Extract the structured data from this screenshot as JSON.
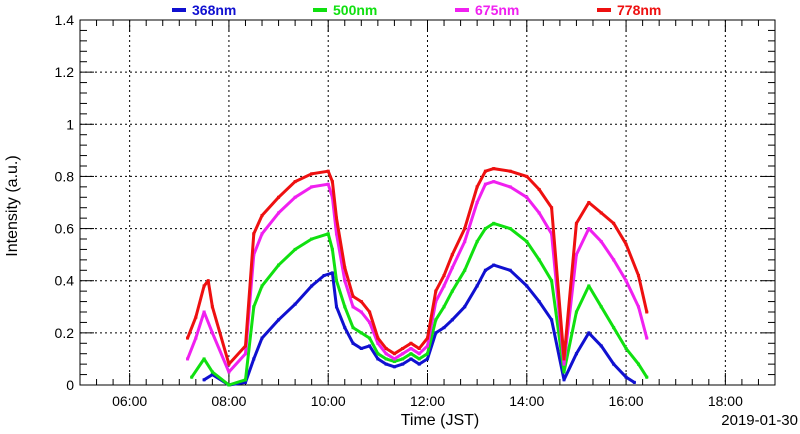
{
  "chart_data": {
    "type": "scatter",
    "title": "",
    "xlabel": "Time (JST)",
    "ylabel": "Intensity (a.u.)",
    "date_label": "2019-01-30",
    "xlim": [
      "05:00",
      "19:00"
    ],
    "ylim": [
      0,
      1.4
    ],
    "x_ticks": [
      "06:00",
      "08:00",
      "10:00",
      "12:00",
      "14:00",
      "16:00",
      "18:00"
    ],
    "y_ticks": [
      "0",
      "0.2",
      "0.4",
      "0.6",
      "0.8",
      "1",
      "1.2",
      "1.4"
    ],
    "grid": true,
    "legend_position": "top",
    "series": [
      {
        "name": "368nm",
        "color": "#1010d0",
        "points": [
          [
            "07:30",
            0.02
          ],
          [
            "07:40",
            0.04
          ],
          [
            "08:00",
            0.0
          ],
          [
            "08:20",
            0.01
          ],
          [
            "08:30",
            0.1
          ],
          [
            "08:40",
            0.18
          ],
          [
            "09:00",
            0.25
          ],
          [
            "09:20",
            0.31
          ],
          [
            "09:40",
            0.38
          ],
          [
            "09:55",
            0.42
          ],
          [
            "10:05",
            0.43
          ],
          [
            "10:10",
            0.3
          ],
          [
            "10:20",
            0.22
          ],
          [
            "10:30",
            0.16
          ],
          [
            "10:40",
            0.14
          ],
          [
            "10:50",
            0.15
          ],
          [
            "11:00",
            0.1
          ],
          [
            "11:10",
            0.08
          ],
          [
            "11:20",
            0.07
          ],
          [
            "11:30",
            0.08
          ],
          [
            "11:40",
            0.1
          ],
          [
            "11:50",
            0.08
          ],
          [
            "12:00",
            0.1
          ],
          [
            "12:10",
            0.2
          ],
          [
            "12:20",
            0.22
          ],
          [
            "12:30",
            0.25
          ],
          [
            "12:45",
            0.3
          ],
          [
            "13:00",
            0.38
          ],
          [
            "13:10",
            0.44
          ],
          [
            "13:20",
            0.46
          ],
          [
            "13:40",
            0.44
          ],
          [
            "14:00",
            0.38
          ],
          [
            "14:15",
            0.32
          ],
          [
            "14:30",
            0.25
          ],
          [
            "14:45",
            0.02
          ],
          [
            "15:00",
            0.12
          ],
          [
            "15:15",
            0.2
          ],
          [
            "15:30",
            0.15
          ],
          [
            "15:45",
            0.08
          ],
          [
            "16:00",
            0.03
          ],
          [
            "16:10",
            0.01
          ]
        ]
      },
      {
        "name": "500nm",
        "color": "#10e010",
        "points": [
          [
            "07:15",
            0.03
          ],
          [
            "07:30",
            0.1
          ],
          [
            "07:40",
            0.05
          ],
          [
            "08:00",
            0.0
          ],
          [
            "08:20",
            0.02
          ],
          [
            "08:30",
            0.3
          ],
          [
            "08:40",
            0.38
          ],
          [
            "09:00",
            0.46
          ],
          [
            "09:20",
            0.52
          ],
          [
            "09:40",
            0.56
          ],
          [
            "10:00",
            0.58
          ],
          [
            "10:05",
            0.52
          ],
          [
            "10:10",
            0.4
          ],
          [
            "10:20",
            0.3
          ],
          [
            "10:30",
            0.22
          ],
          [
            "10:40",
            0.2
          ],
          [
            "10:50",
            0.18
          ],
          [
            "11:00",
            0.12
          ],
          [
            "11:10",
            0.1
          ],
          [
            "11:20",
            0.09
          ],
          [
            "11:30",
            0.1
          ],
          [
            "11:40",
            0.12
          ],
          [
            "11:50",
            0.1
          ],
          [
            "12:00",
            0.12
          ],
          [
            "12:10",
            0.25
          ],
          [
            "12:20",
            0.3
          ],
          [
            "12:30",
            0.36
          ],
          [
            "12:45",
            0.44
          ],
          [
            "13:00",
            0.55
          ],
          [
            "13:10",
            0.6
          ],
          [
            "13:20",
            0.62
          ],
          [
            "13:40",
            0.6
          ],
          [
            "14:00",
            0.55
          ],
          [
            "14:15",
            0.48
          ],
          [
            "14:30",
            0.4
          ],
          [
            "14:45",
            0.05
          ],
          [
            "15:00",
            0.28
          ],
          [
            "15:15",
            0.38
          ],
          [
            "15:30",
            0.3
          ],
          [
            "15:45",
            0.22
          ],
          [
            "16:00",
            0.14
          ],
          [
            "16:15",
            0.08
          ],
          [
            "16:25",
            0.03
          ]
        ]
      },
      {
        "name": "675nm",
        "color": "#f020f0",
        "points": [
          [
            "07:10",
            0.1
          ],
          [
            "07:20",
            0.18
          ],
          [
            "07:30",
            0.28
          ],
          [
            "07:40",
            0.2
          ],
          [
            "08:00",
            0.05
          ],
          [
            "08:20",
            0.12
          ],
          [
            "08:30",
            0.5
          ],
          [
            "08:40",
            0.58
          ],
          [
            "09:00",
            0.66
          ],
          [
            "09:20",
            0.72
          ],
          [
            "09:40",
            0.76
          ],
          [
            "10:00",
            0.77
          ],
          [
            "10:05",
            0.72
          ],
          [
            "10:10",
            0.58
          ],
          [
            "10:20",
            0.4
          ],
          [
            "10:30",
            0.3
          ],
          [
            "10:40",
            0.28
          ],
          [
            "10:50",
            0.24
          ],
          [
            "11:00",
            0.16
          ],
          [
            "11:10",
            0.12
          ],
          [
            "11:20",
            0.1
          ],
          [
            "11:30",
            0.12
          ],
          [
            "11:40",
            0.14
          ],
          [
            "11:50",
            0.12
          ],
          [
            "12:00",
            0.15
          ],
          [
            "12:10",
            0.32
          ],
          [
            "12:20",
            0.38
          ],
          [
            "12:30",
            0.45
          ],
          [
            "12:45",
            0.55
          ],
          [
            "13:00",
            0.7
          ],
          [
            "13:10",
            0.77
          ],
          [
            "13:20",
            0.78
          ],
          [
            "13:40",
            0.76
          ],
          [
            "14:00",
            0.72
          ],
          [
            "14:15",
            0.66
          ],
          [
            "14:30",
            0.58
          ],
          [
            "14:45",
            0.08
          ],
          [
            "15:00",
            0.5
          ],
          [
            "15:15",
            0.6
          ],
          [
            "15:30",
            0.55
          ],
          [
            "15:45",
            0.48
          ],
          [
            "16:00",
            0.4
          ],
          [
            "16:15",
            0.3
          ],
          [
            "16:25",
            0.18
          ]
        ]
      },
      {
        "name": "778nm",
        "color": "#ee1010",
        "points": [
          [
            "07:10",
            0.18
          ],
          [
            "07:20",
            0.26
          ],
          [
            "07:30",
            0.38
          ],
          [
            "07:35",
            0.4
          ],
          [
            "07:40",
            0.3
          ],
          [
            "08:00",
            0.08
          ],
          [
            "08:20",
            0.15
          ],
          [
            "08:30",
            0.58
          ],
          [
            "08:40",
            0.65
          ],
          [
            "09:00",
            0.72
          ],
          [
            "09:20",
            0.78
          ],
          [
            "09:40",
            0.81
          ],
          [
            "10:00",
            0.82
          ],
          [
            "10:05",
            0.78
          ],
          [
            "10:10",
            0.64
          ],
          [
            "10:20",
            0.45
          ],
          [
            "10:30",
            0.34
          ],
          [
            "10:40",
            0.32
          ],
          [
            "10:50",
            0.28
          ],
          [
            "11:00",
            0.18
          ],
          [
            "11:10",
            0.14
          ],
          [
            "11:20",
            0.12
          ],
          [
            "11:30",
            0.14
          ],
          [
            "11:40",
            0.16
          ],
          [
            "11:50",
            0.14
          ],
          [
            "12:00",
            0.18
          ],
          [
            "12:10",
            0.36
          ],
          [
            "12:20",
            0.42
          ],
          [
            "12:30",
            0.5
          ],
          [
            "12:45",
            0.6
          ],
          [
            "13:00",
            0.76
          ],
          [
            "13:10",
            0.82
          ],
          [
            "13:20",
            0.83
          ],
          [
            "13:40",
            0.82
          ],
          [
            "14:00",
            0.8
          ],
          [
            "14:15",
            0.75
          ],
          [
            "14:30",
            0.68
          ],
          [
            "14:45",
            0.1
          ],
          [
            "15:00",
            0.62
          ],
          [
            "15:15",
            0.7
          ],
          [
            "15:30",
            0.66
          ],
          [
            "15:45",
            0.62
          ],
          [
            "16:00",
            0.54
          ],
          [
            "16:15",
            0.42
          ],
          [
            "16:25",
            0.28
          ]
        ]
      }
    ]
  }
}
